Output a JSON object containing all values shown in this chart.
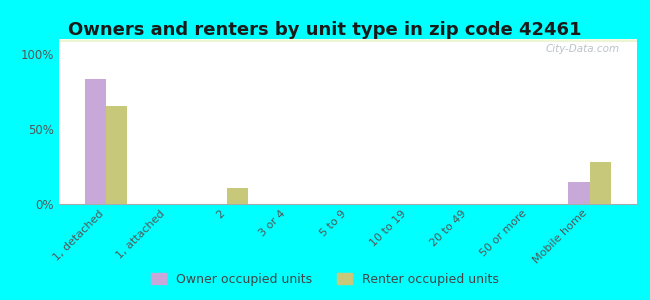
{
  "title": "Owners and renters by unit type in zip code 42461",
  "categories": [
    "1, detached",
    "1, attached",
    "2",
    "3 or 4",
    "5 to 9",
    "10 to 19",
    "20 to 49",
    "50 or more",
    "Mobile home"
  ],
  "owner_values": [
    83,
    0,
    0,
    0,
    0,
    0,
    0,
    0,
    15
  ],
  "renter_values": [
    65,
    0,
    11,
    0,
    0,
    0,
    0,
    0,
    28
  ],
  "owner_color": "#c8a8d8",
  "renter_color": "#c8c87a",
  "background_color": "#00ffff",
  "yticks": [
    0,
    50,
    100
  ],
  "ylim": [
    0,
    110
  ],
  "legend_labels": [
    "Owner occupied units",
    "Renter occupied units"
  ],
  "watermark": "City-Data.com",
  "title_fontsize": 13,
  "bar_width": 0.35
}
